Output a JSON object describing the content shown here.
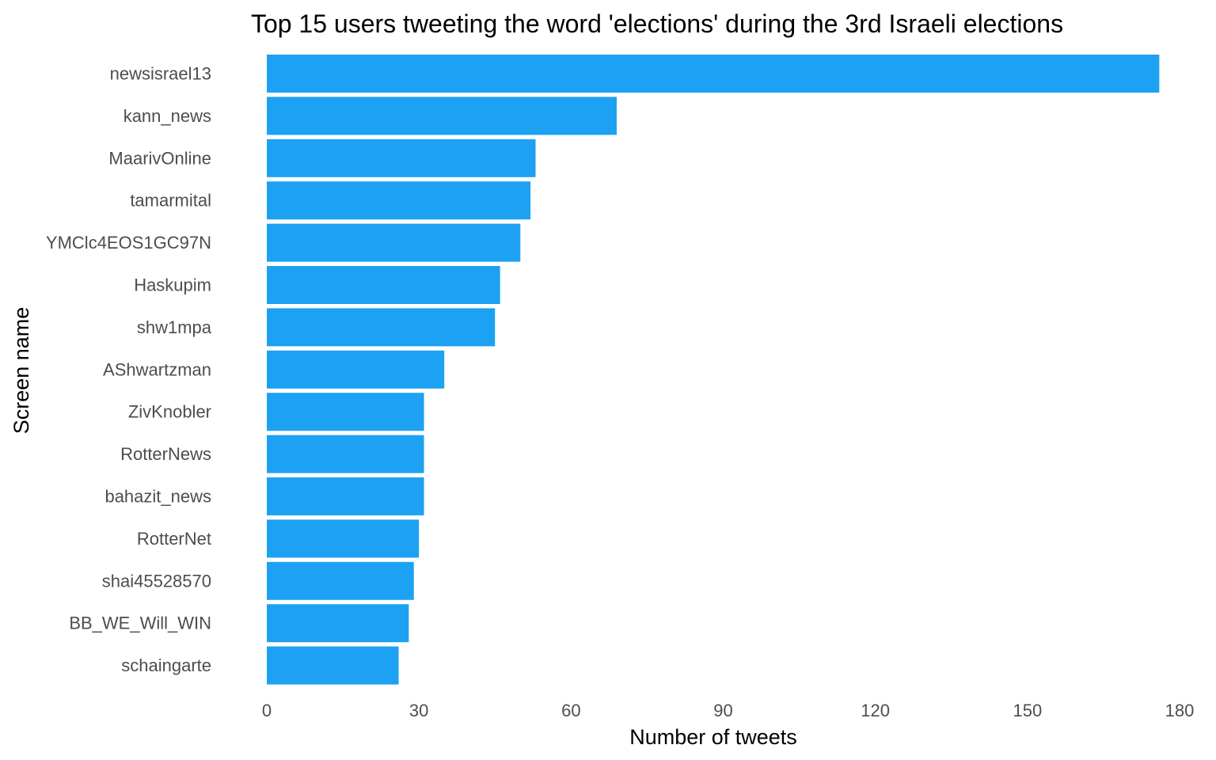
{
  "chart_data": {
    "type": "bar",
    "orientation": "horizontal",
    "title": "Top 15 users tweeting the word 'elections' during the 3rd Israeli elections",
    "xlabel": "Number of tweets",
    "ylabel": "Screen name",
    "categories": [
      "newsisrael13",
      "kann_news",
      "MaarivOnline",
      "tamarmital",
      "YMClc4EOS1GC97N",
      "Haskupim",
      "shw1mpa",
      "AShwartzman",
      "ZivKnobler",
      "RotterNews",
      "bahazit_news",
      "RotterNet",
      "shai45528570",
      "BB_WE_Will_WIN",
      "schaingarte"
    ],
    "values": [
      176,
      69,
      53,
      52,
      50,
      46,
      45,
      35,
      31,
      31,
      31,
      30,
      29,
      28,
      26
    ],
    "xlim": [
      0,
      180
    ],
    "xticks": [
      "0",
      "30",
      "60",
      "90",
      "120",
      "150",
      "180"
    ],
    "grid": false,
    "legend": "none",
    "bar_color": "#1da1f2"
  }
}
